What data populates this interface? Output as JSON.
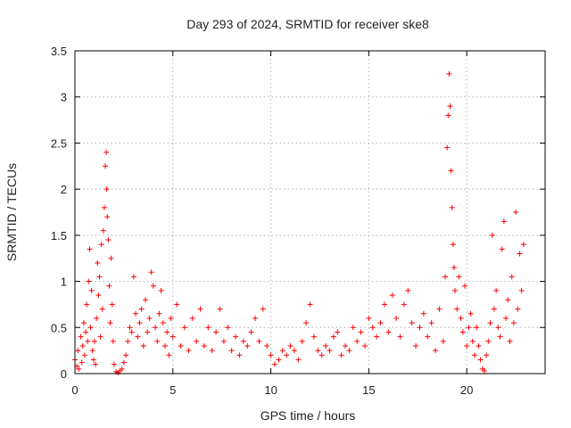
{
  "chart_data": {
    "type": "scatter",
    "title": "Day 293 of 2024, SRMTID for receiver ske8",
    "xlabel": "GPS time / hours",
    "ylabel": "SRMTID / TECUs",
    "xlim": [
      0,
      24.0
    ],
    "ylim": [
      0,
      3.5
    ],
    "xticks": [
      0,
      5,
      10,
      15,
      20
    ],
    "xtick_labels": [
      "0",
      "5",
      "10",
      "15",
      "20"
    ],
    "yticks": [
      0,
      0.5,
      1,
      1.5,
      2,
      2.5,
      3,
      3.5
    ],
    "ytick_labels": [
      "0",
      "0.5",
      "1",
      "1.5",
      "2",
      "2.5",
      "3",
      "3.5"
    ],
    "grid": true,
    "marker": "+",
    "marker_color": "#ff0000",
    "series": [
      {
        "name": "SRMTID",
        "note": "dense scatter; representative sampled points",
        "points": [
          [
            0.0,
            0.15
          ],
          [
            0.1,
            0.08
          ],
          [
            0.15,
            0.25
          ],
          [
            0.2,
            0.05
          ],
          [
            0.3,
            0.4
          ],
          [
            0.35,
            0.12
          ],
          [
            0.4,
            0.3
          ],
          [
            0.45,
            0.55
          ],
          [
            0.5,
            0.2
          ],
          [
            0.55,
            0.45
          ],
          [
            0.6,
            0.75
          ],
          [
            0.65,
            0.35
          ],
          [
            0.7,
            1.0
          ],
          [
            0.75,
            1.35
          ],
          [
            0.8,
            0.5
          ],
          [
            0.85,
            0.9
          ],
          [
            0.9,
            0.25
          ],
          [
            0.95,
            0.15
          ],
          [
            1.0,
            0.35
          ],
          [
            1.05,
            0.1
          ],
          [
            1.1,
            0.6
          ],
          [
            1.15,
            1.2
          ],
          [
            1.2,
            0.85
          ],
          [
            1.25,
            1.05
          ],
          [
            1.3,
            0.4
          ],
          [
            1.35,
            1.4
          ],
          [
            1.4,
            0.7
          ],
          [
            1.45,
            1.55
          ],
          [
            1.5,
            1.8
          ],
          [
            1.55,
            2.25
          ],
          [
            1.6,
            2.4
          ],
          [
            1.62,
            2.0
          ],
          [
            1.65,
            1.7
          ],
          [
            1.7,
            1.45
          ],
          [
            1.75,
            0.95
          ],
          [
            1.8,
            0.55
          ],
          [
            1.85,
            1.25
          ],
          [
            1.9,
            0.75
          ],
          [
            1.95,
            0.35
          ],
          [
            2.0,
            0.1
          ],
          [
            2.1,
            0.02
          ],
          [
            2.2,
            0.01
          ],
          [
            2.3,
            0.03
          ],
          [
            2.4,
            0.05
          ],
          [
            2.5,
            0.12
          ],
          [
            2.6,
            0.2
          ],
          [
            2.7,
            0.35
          ],
          [
            2.8,
            0.5
          ],
          [
            2.9,
            0.45
          ],
          [
            3.0,
            1.05
          ],
          [
            3.1,
            0.65
          ],
          [
            3.2,
            0.4
          ],
          [
            3.3,
            0.55
          ],
          [
            3.4,
            0.7
          ],
          [
            3.5,
            0.3
          ],
          [
            3.6,
            0.8
          ],
          [
            3.7,
            0.45
          ],
          [
            3.8,
            0.6
          ],
          [
            3.9,
            1.1
          ],
          [
            4.0,
            0.95
          ],
          [
            4.1,
            0.5
          ],
          [
            4.2,
            0.35
          ],
          [
            4.3,
            0.65
          ],
          [
            4.4,
            0.9
          ],
          [
            4.5,
            0.55
          ],
          [
            4.6,
            0.3
          ],
          [
            4.7,
            0.45
          ],
          [
            4.8,
            0.2
          ],
          [
            4.9,
            0.6
          ],
          [
            5.0,
            0.4
          ],
          [
            5.2,
            0.75
          ],
          [
            5.4,
            0.3
          ],
          [
            5.6,
            0.5
          ],
          [
            5.8,
            0.25
          ],
          [
            6.0,
            0.6
          ],
          [
            6.2,
            0.35
          ],
          [
            6.4,
            0.7
          ],
          [
            6.6,
            0.3
          ],
          [
            6.8,
            0.5
          ],
          [
            7.0,
            0.25
          ],
          [
            7.2,
            0.45
          ],
          [
            7.4,
            0.7
          ],
          [
            7.6,
            0.35
          ],
          [
            7.8,
            0.5
          ],
          [
            8.0,
            0.25
          ],
          [
            8.2,
            0.4
          ],
          [
            8.4,
            0.2
          ],
          [
            8.6,
            0.35
          ],
          [
            8.8,
            0.3
          ],
          [
            9.0,
            0.45
          ],
          [
            9.2,
            0.6
          ],
          [
            9.4,
            0.35
          ],
          [
            9.6,
            0.7
          ],
          [
            9.8,
            0.3
          ],
          [
            10.0,
            0.2
          ],
          [
            10.2,
            0.1
          ],
          [
            10.4,
            0.15
          ],
          [
            10.6,
            0.25
          ],
          [
            10.8,
            0.2
          ],
          [
            11.0,
            0.3
          ],
          [
            11.2,
            0.25
          ],
          [
            11.4,
            0.15
          ],
          [
            11.6,
            0.35
          ],
          [
            11.8,
            0.55
          ],
          [
            12.0,
            0.75
          ],
          [
            12.2,
            0.4
          ],
          [
            12.4,
            0.25
          ],
          [
            12.6,
            0.2
          ],
          [
            12.8,
            0.3
          ],
          [
            13.0,
            0.25
          ],
          [
            13.2,
            0.4
          ],
          [
            13.4,
            0.45
          ],
          [
            13.6,
            0.2
          ],
          [
            13.8,
            0.3
          ],
          [
            14.0,
            0.25
          ],
          [
            14.2,
            0.5
          ],
          [
            14.4,
            0.35
          ],
          [
            14.6,
            0.45
          ],
          [
            14.8,
            0.3
          ],
          [
            15.0,
            0.6
          ],
          [
            15.2,
            0.5
          ],
          [
            15.4,
            0.4
          ],
          [
            15.6,
            0.55
          ],
          [
            15.8,
            0.75
          ],
          [
            16.0,
            0.45
          ],
          [
            16.2,
            0.85
          ],
          [
            16.4,
            0.6
          ],
          [
            16.6,
            0.4
          ],
          [
            16.8,
            0.75
          ],
          [
            17.0,
            0.9
          ],
          [
            17.2,
            0.55
          ],
          [
            17.4,
            0.3
          ],
          [
            17.6,
            0.5
          ],
          [
            17.8,
            0.65
          ],
          [
            18.0,
            0.4
          ],
          [
            18.2,
            0.55
          ],
          [
            18.4,
            0.25
          ],
          [
            18.6,
            0.7
          ],
          [
            18.8,
            0.35
          ],
          [
            18.9,
            1.05
          ],
          [
            19.0,
            2.45
          ],
          [
            19.05,
            2.8
          ],
          [
            19.1,
            3.25
          ],
          [
            19.15,
            2.9
          ],
          [
            19.2,
            2.2
          ],
          [
            19.25,
            1.8
          ],
          [
            19.3,
            1.4
          ],
          [
            19.35,
            1.15
          ],
          [
            19.4,
            0.9
          ],
          [
            19.5,
            0.7
          ],
          [
            19.6,
            1.05
          ],
          [
            19.7,
            0.6
          ],
          [
            19.8,
            0.45
          ],
          [
            19.9,
            0.95
          ],
          [
            20.0,
            0.3
          ],
          [
            20.1,
            0.5
          ],
          [
            20.2,
            0.65
          ],
          [
            20.3,
            0.35
          ],
          [
            20.4,
            0.2
          ],
          [
            20.5,
            0.5
          ],
          [
            20.6,
            0.3
          ],
          [
            20.7,
            0.15
          ],
          [
            20.8,
            0.05
          ],
          [
            20.9,
            0.03
          ],
          [
            21.0,
            0.2
          ],
          [
            21.1,
            0.35
          ],
          [
            21.2,
            0.55
          ],
          [
            21.3,
            1.5
          ],
          [
            21.4,
            0.7
          ],
          [
            21.5,
            0.9
          ],
          [
            21.6,
            0.5
          ],
          [
            21.7,
            0.4
          ],
          [
            21.8,
            1.35
          ],
          [
            21.9,
            1.65
          ],
          [
            22.0,
            0.6
          ],
          [
            22.1,
            0.8
          ],
          [
            22.2,
            0.35
          ],
          [
            22.3,
            1.05
          ],
          [
            22.4,
            0.55
          ],
          [
            22.5,
            1.75
          ],
          [
            22.6,
            0.7
          ],
          [
            22.7,
            1.3
          ],
          [
            22.8,
            0.9
          ],
          [
            22.9,
            1.4
          ]
        ]
      }
    ]
  }
}
